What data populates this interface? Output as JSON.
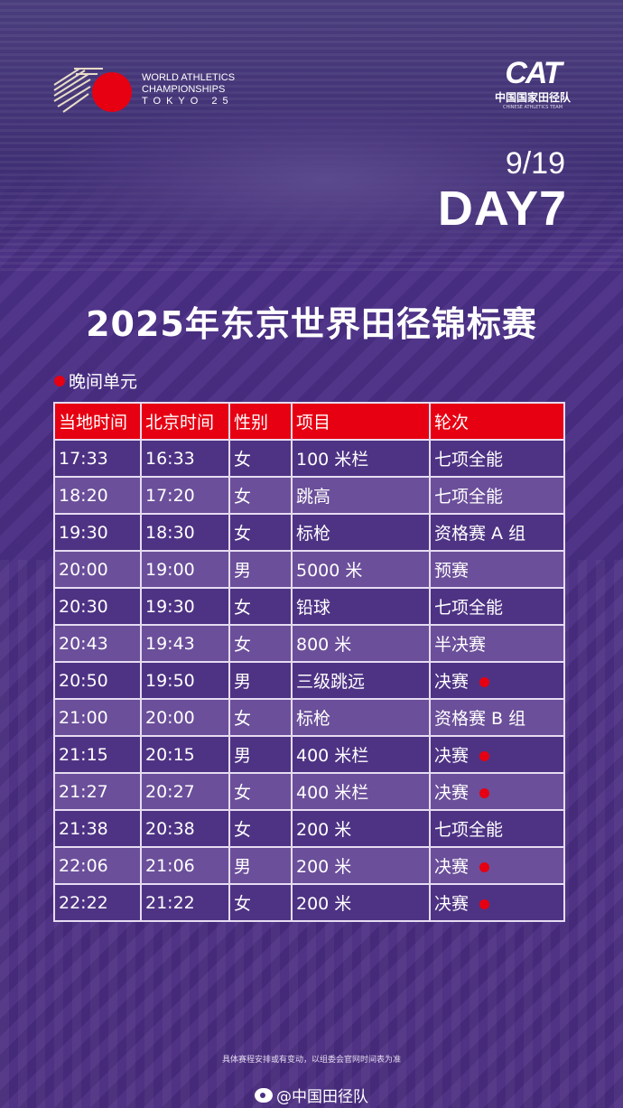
{
  "header": {
    "event_logo": {
      "line1": "WORLD ATHLETICS",
      "line2": "CHAMPIONSHIPS",
      "line3": "TOKYO 25"
    },
    "team_logo": {
      "mark": "CAT",
      "name_cn": "中国国家田径队",
      "name_en": "CHINESE ATHLETICS TEAM"
    },
    "date": "9/19",
    "day": "DAY7"
  },
  "title": "2025年东京世界田径锦标赛",
  "session": "晚间单元",
  "colors": {
    "accent_red": "#e60012",
    "bg_purple": "#4b2f86",
    "row_dark": "#4e3384",
    "row_light": "#6b4f9a"
  },
  "table": {
    "headers": [
      "当地时间",
      "北京时间",
      "性别",
      "项目",
      "轮次"
    ],
    "rows": [
      {
        "local": "17:33",
        "beijing": "16:33",
        "gender": "女",
        "event": "100 米栏",
        "round": "七项全能",
        "final": false
      },
      {
        "local": "18:20",
        "beijing": "17:20",
        "gender": "女",
        "event": "跳高",
        "round": "七项全能",
        "final": false
      },
      {
        "local": "19:30",
        "beijing": "18:30",
        "gender": "女",
        "event": "标枪",
        "round": "资格赛 A 组",
        "final": false
      },
      {
        "local": "20:00",
        "beijing": "19:00",
        "gender": "男",
        "event": "5000 米",
        "round": "预赛",
        "final": false
      },
      {
        "local": "20:30",
        "beijing": "19:30",
        "gender": "女",
        "event": "铅球",
        "round": "七项全能",
        "final": false
      },
      {
        "local": "20:43",
        "beijing": "19:43",
        "gender": "女",
        "event": "800 米",
        "round": "半决赛",
        "final": false
      },
      {
        "local": "20:50",
        "beijing": "19:50",
        "gender": "男",
        "event": "三级跳远",
        "round": "决赛",
        "final": true
      },
      {
        "local": "21:00",
        "beijing": "20:00",
        "gender": "女",
        "event": "标枪",
        "round": "资格赛 B 组",
        "final": false
      },
      {
        "local": "21:15",
        "beijing": "20:15",
        "gender": "男",
        "event": "400 米栏",
        "round": "决赛",
        "final": true
      },
      {
        "local": "21:27",
        "beijing": "20:27",
        "gender": "女",
        "event": "400 米栏",
        "round": "决赛",
        "final": true
      },
      {
        "local": "21:38",
        "beijing": "20:38",
        "gender": "女",
        "event": "200 米",
        "round": "七项全能",
        "final": false
      },
      {
        "local": "22:06",
        "beijing": "21:06",
        "gender": "男",
        "event": "200 米",
        "round": "决赛",
        "final": true
      },
      {
        "local": "22:22",
        "beijing": "21:22",
        "gender": "女",
        "event": "200 米",
        "round": "决赛",
        "final": true
      }
    ]
  },
  "footer": {
    "note": "具体赛程安排或有变动，以组委会官网时间表为准",
    "weibo": "@中国田径队",
    "weibo_icon": "weibo-icon"
  }
}
